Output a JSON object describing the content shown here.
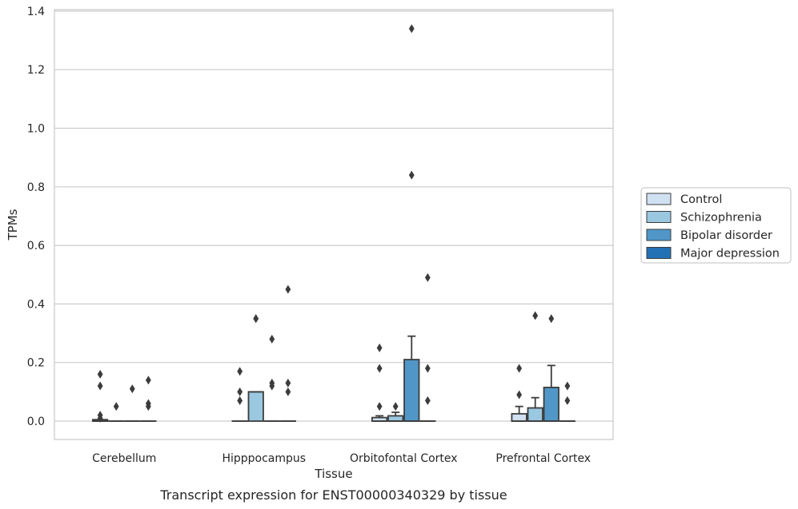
{
  "chart_data": {
    "type": "box",
    "xlabel": "Tissue",
    "ylabel": "TPMs",
    "caption": "Transcript expression for ENST00000340329 by tissue",
    "ylim": [
      -0.065,
      1.41
    ],
    "yticks": [
      0.0,
      0.2,
      0.4,
      0.6,
      0.8,
      1.0,
      1.2,
      1.4
    ],
    "ytick_labels": [
      "0.0",
      "0.2",
      "0.4",
      "0.6",
      "0.8",
      "1.0",
      "1.2",
      "1.4"
    ],
    "grid": "horizontal",
    "legend_position": "right",
    "categories": [
      "Cerebellum",
      "Hipppocampus",
      "Orbitofontal Cortex",
      "Prefrontal Cortex"
    ],
    "series": [
      {
        "name": "Control",
        "color": "#d0e1f2",
        "boxes": [
          {
            "q1": 0.0,
            "median": 0.0,
            "q3": 0.005,
            "whisker_low": 0.0,
            "whisker_high": 0.005,
            "outliers": [
              0.16,
              0.12,
              0.02,
              0.01
            ]
          },
          {
            "q1": 0.0,
            "median": 0.0,
            "q3": 0.0,
            "whisker_low": 0.0,
            "whisker_high": 0.0,
            "outliers": [
              0.17,
              0.1,
              0.07
            ]
          },
          {
            "q1": 0.0,
            "median": 0.0,
            "q3": 0.012,
            "whisker_low": 0.0,
            "whisker_high": 0.018,
            "outliers": [
              0.25,
              0.18,
              0.05
            ]
          },
          {
            "q1": 0.0,
            "median": 0.0,
            "q3": 0.025,
            "whisker_low": 0.0,
            "whisker_high": 0.05,
            "outliers": [
              0.18,
              0.09
            ]
          }
        ]
      },
      {
        "name": "Schizophrenia",
        "color": "#9ac8e0",
        "boxes": [
          {
            "q1": 0.0,
            "median": 0.0,
            "q3": 0.0,
            "whisker_low": 0.0,
            "whisker_high": 0.0,
            "outliers": [
              0.05
            ]
          },
          {
            "q1": 0.0,
            "median": 0.1,
            "q3": 0.1,
            "whisker_low": 0.0,
            "whisker_high": 0.1,
            "outliers": [
              0.35,
              0.35
            ]
          },
          {
            "q1": 0.0,
            "median": 0.0,
            "q3": 0.018,
            "whisker_low": 0.0,
            "whisker_high": 0.03,
            "outliers": [
              0.05
            ]
          },
          {
            "q1": 0.0,
            "median": 0.0,
            "q3": 0.045,
            "whisker_low": 0.0,
            "whisker_high": 0.08,
            "outliers": [
              0.36
            ]
          }
        ]
      },
      {
        "name": "Bipolar disorder",
        "color": "#5097c8",
        "boxes": [
          {
            "q1": 0.0,
            "median": 0.0,
            "q3": 0.0,
            "whisker_low": 0.0,
            "whisker_high": 0.0,
            "outliers": [
              0.11
            ]
          },
          {
            "q1": 0.0,
            "median": 0.0,
            "q3": 0.0,
            "whisker_low": 0.0,
            "whisker_high": 0.0,
            "outliers": [
              0.28,
              0.13,
              0.12
            ]
          },
          {
            "q1": 0.0,
            "median": 0.0,
            "q3": 0.21,
            "whisker_low": 0.0,
            "whisker_high": 0.29,
            "outliers": [
              1.34,
              0.84
            ]
          },
          {
            "q1": 0.0,
            "median": 0.0,
            "q3": 0.115,
            "whisker_low": 0.0,
            "whisker_high": 0.19,
            "outliers": [
              0.35
            ]
          }
        ]
      },
      {
        "name": "Major depression",
        "color": "#2271b5",
        "boxes": [
          {
            "q1": 0.0,
            "median": 0.0,
            "q3": 0.0,
            "whisker_low": 0.0,
            "whisker_high": 0.0,
            "outliers": [
              0.14,
              0.06,
              0.05
            ]
          },
          {
            "q1": 0.0,
            "median": 0.0,
            "q3": 0.0,
            "whisker_low": 0.0,
            "whisker_high": 0.0,
            "outliers": [
              0.45,
              0.13,
              0.1
            ]
          },
          {
            "q1": 0.0,
            "median": 0.0,
            "q3": 0.0,
            "whisker_low": 0.0,
            "whisker_high": 0.0,
            "outliers": [
              0.49,
              0.18,
              0.07
            ]
          },
          {
            "q1": 0.0,
            "median": 0.0,
            "q3": 0.0,
            "whisker_low": 0.0,
            "whisker_high": 0.0,
            "outliers": [
              0.12,
              0.07
            ]
          }
        ]
      }
    ]
  }
}
